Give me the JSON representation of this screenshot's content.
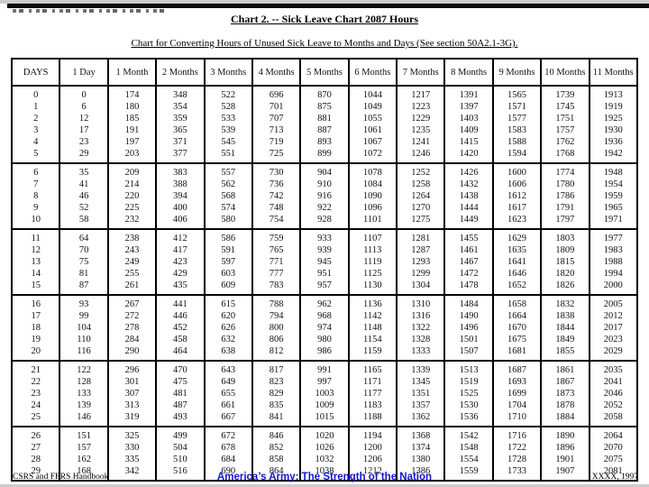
{
  "page": {
    "title": "Chart 2. -- Sick Leave Chart 2087 Hours",
    "subtitle": "Chart for Converting Hours of Unused Sick Leave to Months and Days (See section 50A2.1-3G)."
  },
  "table": {
    "headers": [
      "DAYS",
      "1 Day",
      "1 Month",
      "2 Months",
      "3 Months",
      "4 Months",
      "5 Months",
      "6 Months",
      "7 Months",
      "8 Months",
      "9 Months",
      "10 Months",
      "11 Months"
    ],
    "groups": [
      [
        [
          0,
          0,
          174,
          348,
          522,
          696,
          870,
          1044,
          1217,
          1391,
          1565,
          1739,
          1913
        ],
        [
          1,
          6,
          180,
          354,
          528,
          701,
          875,
          1049,
          1223,
          1397,
          1571,
          1745,
          1919
        ],
        [
          2,
          12,
          185,
          359,
          533,
          707,
          881,
          1055,
          1229,
          1403,
          1577,
          1751,
          1925
        ],
        [
          3,
          17,
          191,
          365,
          539,
          713,
          887,
          1061,
          1235,
          1409,
          1583,
          1757,
          1930
        ],
        [
          4,
          23,
          197,
          371,
          545,
          719,
          893,
          1067,
          1241,
          1415,
          1588,
          1762,
          1936
        ],
        [
          5,
          29,
          203,
          377,
          551,
          725,
          899,
          1072,
          1246,
          1420,
          1594,
          1768,
          1942
        ]
      ],
      [
        [
          6,
          35,
          209,
          383,
          557,
          730,
          904,
          1078,
          1252,
          1426,
          1600,
          1774,
          1948
        ],
        [
          7,
          41,
          214,
          388,
          562,
          736,
          910,
          1084,
          1258,
          1432,
          1606,
          1780,
          1954
        ],
        [
          8,
          46,
          220,
          394,
          568,
          742,
          916,
          1090,
          1264,
          1438,
          1612,
          1786,
          1959
        ],
        [
          9,
          52,
          225,
          400,
          574,
          748,
          922,
          1096,
          1270,
          1444,
          1617,
          1791,
          1965
        ],
        [
          10,
          58,
          232,
          406,
          580,
          754,
          928,
          1101,
          1275,
          1449,
          1623,
          1797,
          1971
        ]
      ],
      [
        [
          11,
          64,
          238,
          412,
          586,
          759,
          933,
          1107,
          1281,
          1455,
          1629,
          1803,
          1977
        ],
        [
          12,
          70,
          243,
          417,
          591,
          765,
          939,
          1113,
          1287,
          1461,
          1635,
          1809,
          1983
        ],
        [
          13,
          75,
          249,
          423,
          597,
          771,
          945,
          1119,
          1293,
          1467,
          1641,
          1815,
          1988
        ],
        [
          14,
          81,
          255,
          429,
          603,
          777,
          951,
          1125,
          1299,
          1472,
          1646,
          1820,
          1994
        ],
        [
          15,
          87,
          261,
          435,
          609,
          783,
          957,
          1130,
          1304,
          1478,
          1652,
          1826,
          2000
        ]
      ],
      [
        [
          16,
          93,
          267,
          441,
          615,
          788,
          962,
          1136,
          1310,
          1484,
          1658,
          1832,
          2005
        ],
        [
          17,
          99,
          272,
          446,
          620,
          794,
          968,
          1142,
          1316,
          1490,
          1664,
          1838,
          2012
        ],
        [
          18,
          104,
          278,
          452,
          626,
          800,
          974,
          1148,
          1322,
          1496,
          1670,
          1844,
          2017
        ],
        [
          19,
          110,
          284,
          458,
          632,
          806,
          980,
          1154,
          1328,
          1501,
          1675,
          1849,
          2023
        ],
        [
          20,
          116,
          290,
          464,
          638,
          812,
          986,
          1159,
          1333,
          1507,
          1681,
          1855,
          2029
        ]
      ],
      [
        [
          21,
          122,
          296,
          470,
          643,
          817,
          991,
          1165,
          1339,
          1513,
          1687,
          1861,
          2035
        ],
        [
          22,
          128,
          301,
          475,
          649,
          823,
          997,
          1171,
          1345,
          1519,
          1693,
          1867,
          2041
        ],
        [
          23,
          133,
          307,
          481,
          655,
          829,
          1003,
          1177,
          1351,
          1525,
          1699,
          1873,
          2046
        ],
        [
          24,
          139,
          313,
          487,
          661,
          835,
          1009,
          1183,
          1357,
          1530,
          1704,
          1878,
          2052
        ],
        [
          25,
          146,
          319,
          493,
          667,
          841,
          1015,
          1188,
          1362,
          1536,
          1710,
          1884,
          2058
        ]
      ],
      [
        [
          26,
          151,
          325,
          499,
          672,
          846,
          1020,
          1194,
          1368,
          1542,
          1716,
          1890,
          2064
        ],
        [
          27,
          157,
          330,
          504,
          678,
          852,
          1026,
          1200,
          1374,
          1548,
          1722,
          1896,
          2070
        ],
        [
          28,
          162,
          335,
          510,
          684,
          858,
          1032,
          1206,
          1380,
          1554,
          1728,
          1901,
          2075
        ],
        [
          29,
          168,
          342,
          516,
          690,
          864,
          1038,
          1212,
          1386,
          1559,
          1733,
          1907,
          2081
        ]
      ]
    ]
  },
  "footer": {
    "left": "CSRS and FERS Handbook",
    "center": "America’s Army:  The Strength of the Nation",
    "center_color": "#1515cc",
    "right": "XXXX, 1997"
  }
}
